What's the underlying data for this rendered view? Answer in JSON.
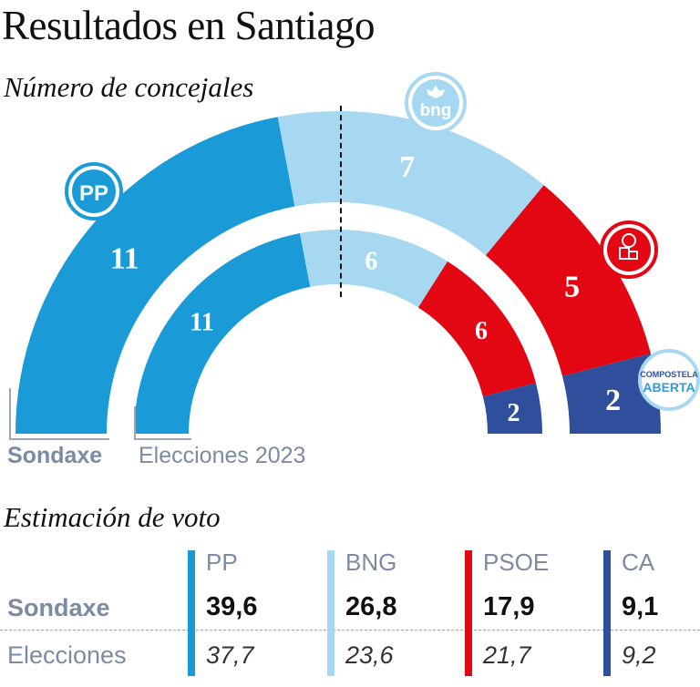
{
  "title": "Resultados en Santiago",
  "subtitle_seats": "Número de concejales",
  "subtitle_votes": "Estimación de voto",
  "legend": {
    "survey": "Sondaxe",
    "election": "Elecciones 2023"
  },
  "logos": {
    "pp": "PP",
    "bng": "bng",
    "ca_line1": "COMPOSTELA",
    "ca_line2": "ABERTA"
  },
  "colors": {
    "PP": "#1b9ad8",
    "BNG": "#a6d8f2",
    "PSOE": "#e30613",
    "CA": "#2f4e9b",
    "muted": "#7d8aa3"
  },
  "chart_data": {
    "type": "semicircle",
    "total_seats": 25,
    "series": [
      {
        "name": "Sondaxe",
        "categories": [
          "PP",
          "BNG",
          "PSOE",
          "CA"
        ],
        "values": [
          11,
          7,
          5,
          2
        ]
      },
      {
        "name": "Elecciones 2023",
        "categories": [
          "PP",
          "BNG",
          "PSOE",
          "CA"
        ],
        "values": [
          11,
          6,
          6,
          2
        ]
      }
    ]
  },
  "votes": {
    "columns": [
      "PP",
      "BNG",
      "PSOE",
      "CA"
    ],
    "rows": [
      {
        "label": "Sondaxe",
        "values": [
          "39,6",
          "26,8",
          "17,9",
          "9,1"
        ]
      },
      {
        "label": "Elecciones",
        "values": [
          "37,7",
          "23,6",
          "21,7",
          "9,2"
        ]
      }
    ]
  }
}
